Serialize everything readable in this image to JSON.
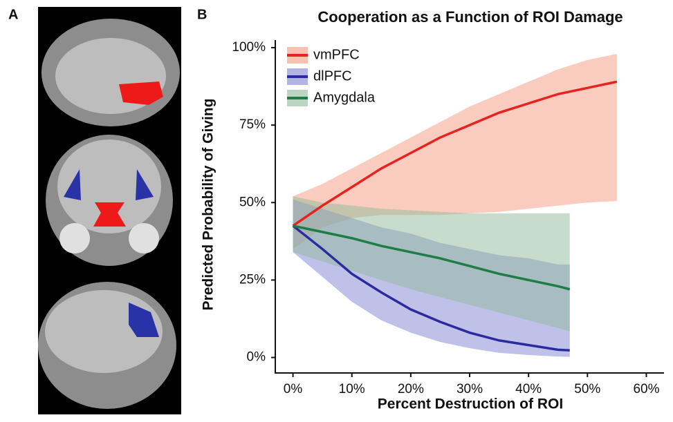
{
  "panel_labels": [
    "A",
    "B"
  ],
  "chart_data": {
    "type": "line",
    "title": "Cooperation as a Function of ROI Damage",
    "x_label": "Percent Destruction of ROI",
    "y_label": "Predicted Probability of Giving",
    "xlim": [
      -3,
      63
    ],
    "ylim": [
      -5,
      102
    ],
    "xticks": [
      {
        "value": 0,
        "label": "0%"
      },
      {
        "value": 10,
        "label": "10%"
      },
      {
        "value": 20,
        "label": "20%"
      },
      {
        "value": 30,
        "label": "30%"
      },
      {
        "value": 40,
        "label": "40%"
      },
      {
        "value": 50,
        "label": "50%"
      },
      {
        "value": 60,
        "label": "60%"
      }
    ],
    "yticks": [
      {
        "value": 0,
        "label": "0%"
      },
      {
        "value": 25,
        "label": "25%"
      },
      {
        "value": 50,
        "label": "50%"
      },
      {
        "value": 75,
        "label": "75%"
      },
      {
        "value": 100,
        "label": "100%"
      }
    ],
    "grid": false,
    "legend": "upper left",
    "series": [
      {
        "name": "vmPFC",
        "color": "#e8231f",
        "band_color": "#f49a80",
        "x": [
          0,
          5,
          10,
          15,
          20,
          25,
          30,
          35,
          40,
          45,
          50,
          55
        ],
        "values": [
          42.5,
          49,
          55,
          61,
          66,
          71,
          75,
          79,
          82,
          85,
          87,
          89
        ],
        "upper": [
          52,
          56,
          61,
          66,
          71,
          76,
          81,
          85,
          89,
          93,
          96,
          98
        ],
        "lower": [
          35,
          42,
          45,
          46,
          46,
          46,
          46.5,
          47,
          48,
          49,
          50,
          50.5
        ]
      },
      {
        "name": "dlPFC",
        "color": "#2b2ba0",
        "band_color": "#7f84d2",
        "x": [
          0,
          5,
          10,
          15,
          20,
          25,
          30,
          35,
          40,
          45,
          47
        ],
        "values": [
          42.5,
          35,
          27,
          21,
          15.5,
          11.5,
          8,
          5.5,
          4,
          2.5,
          2.3
        ],
        "upper": [
          51,
          48,
          45,
          42,
          40,
          37,
          35,
          33,
          32,
          30,
          30
        ],
        "lower": [
          34,
          26,
          18,
          12,
          8,
          5,
          3,
          1.5,
          0.8,
          0.3,
          0.2
        ]
      },
      {
        "name": "Amygdala",
        "color": "#1e7d46",
        "band_color": "#8fb99a",
        "x": [
          0,
          5,
          10,
          15,
          20,
          25,
          30,
          35,
          40,
          45,
          47
        ],
        "values": [
          42.5,
          40.5,
          38.5,
          36,
          34,
          32,
          29.5,
          27,
          25,
          23,
          22
        ],
        "upper": [
          52,
          50,
          49,
          48,
          47.5,
          47,
          46.5,
          46.5,
          46.5,
          46.5,
          46.5
        ],
        "lower": [
          34,
          31,
          28,
          25,
          22,
          19.5,
          17,
          14.5,
          12,
          9.5,
          8.5
        ]
      }
    ]
  }
}
